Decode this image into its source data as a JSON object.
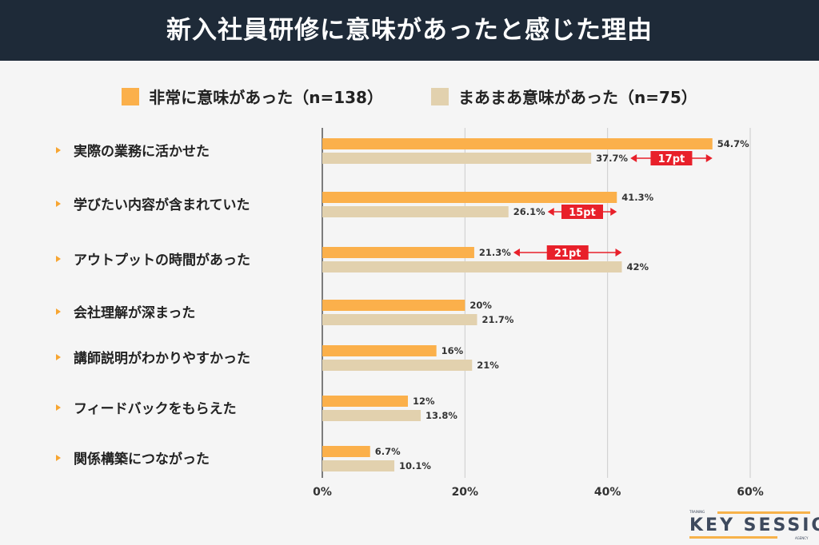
{
  "header": {
    "title": "新入社員研修に意味があったと感じた理由"
  },
  "logo": {
    "main": "KEY SESSION",
    "top": "TRAINING",
    "bottom": "AGENCY"
  },
  "chart_data": {
    "type": "bar",
    "orientation": "horizontal",
    "title": "新入社員研修に意味があったと感じた理由",
    "categories": [
      "実際の業務に活かせた",
      "学びたい内容が含まれていた",
      "アウトプットの時間があった",
      "会社理解が深まった",
      "講師説明がわかりやすかった",
      "フィードバックをもらえた",
      "関係構築につながった"
    ],
    "series": [
      {
        "name": "非常に意味があった（n=138）",
        "color": "#fbb04b",
        "values": [
          54.7,
          41.3,
          21.3,
          20,
          16,
          12,
          6.7
        ],
        "labels": [
          "54.7%",
          "41.3%",
          "21.3%",
          "20%",
          "16%",
          "12%",
          "6.7%"
        ]
      },
      {
        "name": "まあまあ意味があった（n=75）",
        "color": "#e2d1ae",
        "values": [
          37.7,
          26.1,
          42,
          21.7,
          21,
          13.8,
          10.1
        ],
        "labels": [
          "37.7%",
          "26.1%",
          "42%",
          "21.7%",
          "21%",
          "13.8%",
          "10.1%"
        ]
      }
    ],
    "annotations": [
      {
        "category": 0,
        "text": "17pt"
      },
      {
        "category": 1,
        "text": "15pt"
      },
      {
        "category": 2,
        "text": "21pt"
      }
    ],
    "xlim": [
      0,
      60
    ],
    "xticks": [
      0,
      20,
      40,
      60
    ],
    "xtick_labels": [
      "0%",
      "20%",
      "40%",
      "60%"
    ],
    "grid": true,
    "legend": "top",
    "annotation_color": "#e8202a",
    "bullet_color": "#f7a531"
  }
}
